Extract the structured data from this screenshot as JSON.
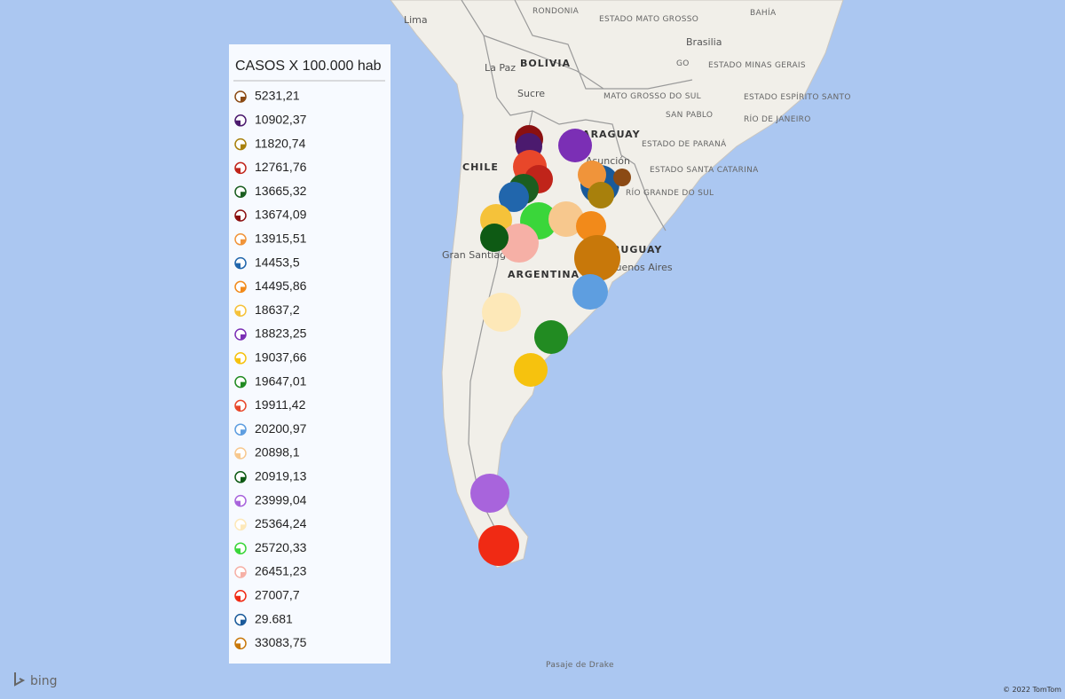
{
  "map": {
    "labels": [
      "Lima",
      "RONDONIA",
      "ESTADO MATO GROSSO",
      "BAHÍA",
      "Brasilia",
      "GO",
      "ESTADO MINAS GERAIS",
      "La Paz",
      "BOLIVIA",
      "Sucre",
      "MATO GROSSO DO SUL",
      "ESTADO ESPÍRITO SANTO",
      "SAN PABLO",
      "RÍO DE JANEIRO",
      "PARAGUAY",
      "Asunción",
      "ESTADO DE PARANÁ",
      "ESTADO SANTA CATARINA",
      "RÍO GRANDE DO SUL",
      "CHILE",
      "Gran Santiago",
      "ARGENTINA",
      "URUGUAY",
      "Buenos Aires",
      "Pasaje de Drake"
    ],
    "attribution": "© 2022 TomTom",
    "brand": "bing"
  },
  "legend": {
    "title": "CASOS X 100.000 hab",
    "items": [
      {
        "label": "5231,21",
        "color": "#8b4a14"
      },
      {
        "label": "10902,37",
        "color": "#4b1a6e"
      },
      {
        "label": "11820,74",
        "color": "#a8800c"
      },
      {
        "label": "12761,76",
        "color": "#c0241a"
      },
      {
        "label": "13665,32",
        "color": "#1b5e20"
      },
      {
        "label": "13674,09",
        "color": "#8b1010"
      },
      {
        "label": "13915,51",
        "color": "#f0943a"
      },
      {
        "label": "14453,5",
        "color": "#2166ac"
      },
      {
        "label": "14495,86",
        "color": "#f28a1a"
      },
      {
        "label": "18637,2",
        "color": "#f5c23a"
      },
      {
        "label": "18823,25",
        "color": "#7b2fb5"
      },
      {
        "label": "19037,66",
        "color": "#f6c20e"
      },
      {
        "label": "19647,01",
        "color": "#228b22"
      },
      {
        "label": "19911,42",
        "color": "#e8472a"
      },
      {
        "label": "20200,97",
        "color": "#5e9ee0"
      },
      {
        "label": "20898,1",
        "color": "#f7c88e"
      },
      {
        "label": "20919,13",
        "color": "#0e5a14"
      },
      {
        "label": "23999,04",
        "color": "#a864dc"
      },
      {
        "label": "25364,24",
        "color": "#fde8b8"
      },
      {
        "label": "25720,33",
        "color": "#3ad63a"
      },
      {
        "label": "26451,23",
        "color": "#f6b0a6"
      },
      {
        "label": "27007,7",
        "color": "#f02a14"
      },
      {
        "label": "29.681",
        "color": "#1a5a9a"
      },
      {
        "label": "33083,75",
        "color": "#c8780a"
      }
    ]
  }
}
